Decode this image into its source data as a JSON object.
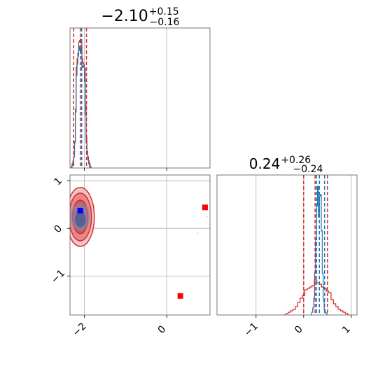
{
  "chart_data": {
    "type": "corner",
    "parameters": 2,
    "colors": {
      "red": "#d62728",
      "blue": "#1f77b4",
      "marker_red": "#ff0000",
      "marker_blue": "#0000ff",
      "grid": "#b0b0b0"
    },
    "grid": true,
    "panels": [
      {
        "id": "hist-param-1",
        "type": "step-histogram",
        "title": {
          "median": "−2.10",
          "plus": "+0.15",
          "minus": "−0.16"
        },
        "xlim": [
          -2.35,
          1.05
        ],
        "x_gridlines": [
          -2,
          0
        ],
        "quantile_lines": {
          "red": [
            -2.26,
            -2.1,
            -1.95
          ],
          "blue": [
            -2.1
          ]
        },
        "series": [
          {
            "name": "",
            "color": "#d62728",
            "x": [
              -2.31,
              -2.29,
              -2.27,
              -2.25,
              -2.23,
              -2.21,
              -2.19,
              -2.17,
              -2.15,
              -2.13,
              -2.11,
              -2.09,
              -2.07,
              -2.05,
              -2.03,
              -2.01,
              -1.99,
              -1.97,
              -1.95,
              -1.93,
              -1.91,
              -1.89,
              -1.87,
              -1.85
            ],
            "y": [
              0.01,
              0.03,
              0.05,
              0.08,
              0.19,
              0.42,
              0.72,
              0.78,
              0.82,
              0.9,
              0.91,
              0.92,
              0.89,
              0.78,
              0.75,
              0.74,
              0.71,
              0.45,
              0.22,
              0.12,
              0.08,
              0.05,
              0.03,
              0.01
            ]
          },
          {
            "name": "",
            "color": "#1f77b4",
            "x": [
              -2.31,
              -2.29,
              -2.27,
              -2.25,
              -2.23,
              -2.21,
              -2.19,
              -2.17,
              -2.15,
              -2.13,
              -2.11,
              -2.09,
              -2.07,
              -2.05,
              -2.03,
              -2.01,
              -1.99,
              -1.97,
              -1.95,
              -1.93,
              -1.91,
              -1.89,
              -1.87,
              -1.85
            ],
            "y": [
              0.0,
              0.02,
              0.04,
              0.08,
              0.18,
              0.4,
              0.66,
              0.74,
              0.8,
              0.87,
              0.84,
              0.86,
              0.83,
              0.72,
              0.73,
              0.72,
              0.62,
              0.38,
              0.18,
              0.1,
              0.06,
              0.03,
              0.01,
              0.0
            ]
          }
        ]
      },
      {
        "id": "scatter-2d",
        "type": "contour",
        "xlim": [
          -2.35,
          1.05
        ],
        "ylim": [
          -1.82,
          1.12
        ],
        "x_ticks": [
          -2,
          0
        ],
        "y_ticks": [
          1,
          0,
          -1
        ],
        "contour_center": [
          -2.1,
          0.24
        ],
        "blue_marker": [
          -2.1,
          0.37
        ],
        "red_markers": [
          [
            0.93,
            0.44
          ],
          [
            0.33,
            -1.42
          ]
        ]
      },
      {
        "id": "hist-param-2",
        "type": "step-histogram",
        "title": {
          "median": "0.24",
          "plus": "+0.26",
          "minus": "−0.24"
        },
        "xlim": [
          -1.82,
          1.12
        ],
        "x_ticks": [
          -1,
          0,
          1
        ],
        "quantile_lines": {
          "red": [
            0.0,
            0.24,
            0.5
          ],
          "blue": [
            0.27,
            0.33,
            0.44
          ]
        },
        "series": [
          {
            "name": "",
            "color": "#d62728",
            "x": [
              -0.4,
              -0.35,
              -0.3,
              -0.25,
              -0.2,
              -0.15,
              -0.1,
              -0.05,
              0.0,
              0.05,
              0.1,
              0.15,
              0.2,
              0.25,
              0.3,
              0.35,
              0.4,
              0.45,
              0.5,
              0.55,
              0.6,
              0.65,
              0.7,
              0.75,
              0.8,
              0.85,
              0.9,
              0.95
            ],
            "y": [
              0.0,
              0.01,
              0.02,
              0.03,
              0.04,
              0.06,
              0.09,
              0.12,
              0.14,
              0.18,
              0.19,
              0.2,
              0.21,
              0.25,
              0.23,
              0.22,
              0.2,
              0.19,
              0.17,
              0.16,
              0.11,
              0.08,
              0.06,
              0.04,
              0.03,
              0.02,
              0.01,
              0.0
            ]
          },
          {
            "name": "",
            "color": "#1f77b4",
            "x": [
              0.16,
              0.18,
              0.2,
              0.22,
              0.24,
              0.26,
              0.28,
              0.3,
              0.32,
              0.34,
              0.36,
              0.38,
              0.4,
              0.42,
              0.44,
              0.46,
              0.48,
              0.5
            ],
            "y": [
              0.0,
              0.02,
              0.05,
              0.12,
              0.3,
              0.55,
              0.78,
              0.92,
              0.7,
              0.85,
              0.86,
              0.6,
              0.3,
              0.1,
              0.04,
              0.02,
              0.01,
              0.0
            ]
          }
        ]
      }
    ]
  }
}
